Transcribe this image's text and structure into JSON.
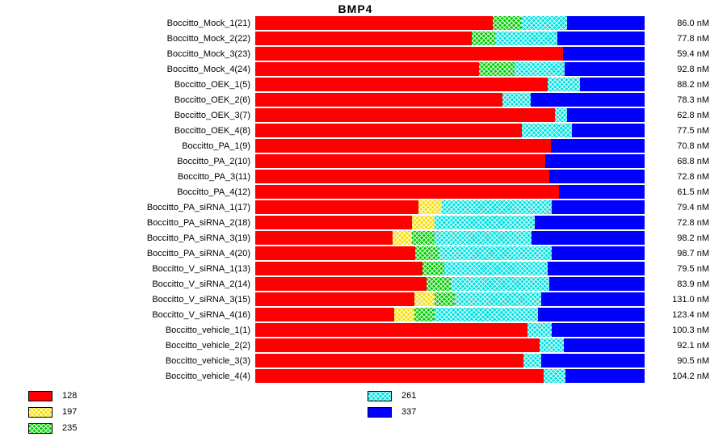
{
  "title": "BMP4",
  "colors": {
    "128": "#ff0000",
    "197": "#f5dd00",
    "235": "#00cc00",
    "261": "#00e0e0",
    "337": "#0000ff"
  },
  "legend": {
    "columns": [
      [
        "128",
        "197",
        "235"
      ],
      [
        "261",
        "337"
      ]
    ],
    "hatched": [
      "197",
      "235",
      "261"
    ]
  },
  "chart_data": {
    "type": "bar",
    "stacked": true,
    "orientation": "horizontal",
    "title": "BMP4",
    "unit": "nM",
    "series_labels": [
      "128",
      "197",
      "235",
      "261",
      "337"
    ],
    "legend_position": "bottom",
    "rows": [
      {
        "label": "Boccitto_Mock_1(21)",
        "value": "86.0 nM",
        "segments": [
          {
            "series": "128",
            "frac": 0.61
          },
          {
            "series": "235",
            "frac": 0.075
          },
          {
            "series": "261",
            "frac": 0.115
          },
          {
            "series": "337",
            "frac": 0.2
          }
        ]
      },
      {
        "label": "Boccitto_Mock_2(22)",
        "value": "77.8 nM",
        "segments": [
          {
            "series": "128",
            "frac": 0.555
          },
          {
            "series": "235",
            "frac": 0.062
          },
          {
            "series": "261",
            "frac": 0.16
          },
          {
            "series": "337",
            "frac": 0.223
          }
        ]
      },
      {
        "label": "Boccitto_Mock_3(23)",
        "value": "59.4 nM",
        "segments": [
          {
            "series": "128",
            "frac": 0.79
          },
          {
            "series": "337",
            "frac": 0.21
          }
        ]
      },
      {
        "label": "Boccitto_Mock_4(24)",
        "value": "92.8 nM",
        "segments": [
          {
            "series": "128",
            "frac": 0.575
          },
          {
            "series": "235",
            "frac": 0.09
          },
          {
            "series": "261",
            "frac": 0.13
          },
          {
            "series": "337",
            "frac": 0.205
          }
        ]
      },
      {
        "label": "Boccitto_OEK_1(5)",
        "value": "88.2 nM",
        "segments": [
          {
            "series": "128",
            "frac": 0.75
          },
          {
            "series": "261",
            "frac": 0.085
          },
          {
            "series": "337",
            "frac": 0.165
          }
        ]
      },
      {
        "label": "Boccitto_OEK_2(6)",
        "value": "78.3 nM",
        "segments": [
          {
            "series": "128",
            "frac": 0.635
          },
          {
            "series": "261",
            "frac": 0.072
          },
          {
            "series": "337",
            "frac": 0.293
          }
        ]
      },
      {
        "label": "Boccitto_OEK_3(7)",
        "value": "62.8 nM",
        "segments": [
          {
            "series": "128",
            "frac": 0.77
          },
          {
            "series": "261",
            "frac": 0.03
          },
          {
            "series": "337",
            "frac": 0.2
          }
        ]
      },
      {
        "label": "Boccitto_OEK_4(8)",
        "value": "77.5 nM",
        "segments": [
          {
            "series": "128",
            "frac": 0.685
          },
          {
            "series": "261",
            "frac": 0.128
          },
          {
            "series": "337",
            "frac": 0.187
          }
        ]
      },
      {
        "label": "Boccitto_PA_1(9)",
        "value": "70.8 nM",
        "segments": [
          {
            "series": "128",
            "frac": 0.76
          },
          {
            "series": "337",
            "frac": 0.24
          }
        ]
      },
      {
        "label": "Boccitto_PA_2(10)",
        "value": "68.8 nM",
        "segments": [
          {
            "series": "128",
            "frac": 0.745
          },
          {
            "series": "337",
            "frac": 0.255
          }
        ]
      },
      {
        "label": "Boccitto_PA_3(11)",
        "value": "72.8 nM",
        "segments": [
          {
            "series": "128",
            "frac": 0.755
          },
          {
            "series": "337",
            "frac": 0.245
          }
        ]
      },
      {
        "label": "Boccitto_PA_4(12)",
        "value": "61.5 nM",
        "segments": [
          {
            "series": "128",
            "frac": 0.78
          },
          {
            "series": "337",
            "frac": 0.22
          }
        ]
      },
      {
        "label": "Boccitto_PA_siRNA_1(17)",
        "value": "79.4 nM",
        "segments": [
          {
            "series": "128",
            "frac": 0.42
          },
          {
            "series": "197",
            "frac": 0.06
          },
          {
            "series": "261",
            "frac": 0.282
          },
          {
            "series": "337",
            "frac": 0.238
          }
        ]
      },
      {
        "label": "Boccitto_PA_siRNA_2(18)",
        "value": "72.8 nM",
        "segments": [
          {
            "series": "128",
            "frac": 0.403
          },
          {
            "series": "197",
            "frac": 0.058
          },
          {
            "series": "261",
            "frac": 0.256
          },
          {
            "series": "337",
            "frac": 0.283
          }
        ]
      },
      {
        "label": "Boccitto_PA_siRNA_3(19)",
        "value": "98.2 nM",
        "segments": [
          {
            "series": "128",
            "frac": 0.352
          },
          {
            "series": "197",
            "frac": 0.05
          },
          {
            "series": "235",
            "frac": 0.058
          },
          {
            "series": "261",
            "frac": 0.25
          },
          {
            "series": "337",
            "frac": 0.29
          }
        ]
      },
      {
        "label": "Boccitto_PA_siRNA_4(20)",
        "value": "98.7 nM",
        "segments": [
          {
            "series": "128",
            "frac": 0.41
          },
          {
            "series": "235",
            "frac": 0.062
          },
          {
            "series": "261",
            "frac": 0.29
          },
          {
            "series": "337",
            "frac": 0.238
          }
        ]
      },
      {
        "label": "Boccitto_V_siRNA_1(13)",
        "value": "79.5 nM",
        "segments": [
          {
            "series": "128",
            "frac": 0.43
          },
          {
            "series": "235",
            "frac": 0.056
          },
          {
            "series": "261",
            "frac": 0.266
          },
          {
            "series": "337",
            "frac": 0.248
          }
        ]
      },
      {
        "label": "Boccitto_V_siRNA_2(14)",
        "value": "83.9 nM",
        "segments": [
          {
            "series": "128",
            "frac": 0.44
          },
          {
            "series": "235",
            "frac": 0.062
          },
          {
            "series": "261",
            "frac": 0.253
          },
          {
            "series": "337",
            "frac": 0.245
          }
        ]
      },
      {
        "label": "Boccitto_V_siRNA_3(15)",
        "value": "131.0 nM",
        "segments": [
          {
            "series": "128",
            "frac": 0.409
          },
          {
            "series": "197",
            "frac": 0.052
          },
          {
            "series": "235",
            "frac": 0.052
          },
          {
            "series": "261",
            "frac": 0.222
          },
          {
            "series": "337",
            "frac": 0.265
          }
        ]
      },
      {
        "label": "Boccitto_V_siRNA_4(16)",
        "value": "123.4 nM",
        "segments": [
          {
            "series": "128",
            "frac": 0.357
          },
          {
            "series": "197",
            "frac": 0.052
          },
          {
            "series": "235",
            "frac": 0.052
          },
          {
            "series": "261",
            "frac": 0.266
          },
          {
            "series": "337",
            "frac": 0.273
          }
        ]
      },
      {
        "label": "Boccitto_vehicle_1(1)",
        "value": "100.3 nM",
        "segments": [
          {
            "series": "128",
            "frac": 0.7
          },
          {
            "series": "261",
            "frac": 0.062
          },
          {
            "series": "337",
            "frac": 0.238
          }
        ]
      },
      {
        "label": "Boccitto_vehicle_2(2)",
        "value": "92.1 nM",
        "segments": [
          {
            "series": "128",
            "frac": 0.73
          },
          {
            "series": "261",
            "frac": 0.062
          },
          {
            "series": "337",
            "frac": 0.208
          }
        ]
      },
      {
        "label": "Boccitto_vehicle_3(3)",
        "value": "90.5 nM",
        "segments": [
          {
            "series": "128",
            "frac": 0.689
          },
          {
            "series": "261",
            "frac": 0.046
          },
          {
            "series": "337",
            "frac": 0.265
          }
        ]
      },
      {
        "label": "Boccitto_vehicle_4(4)",
        "value": "104.2 nM",
        "segments": [
          {
            "series": "128",
            "frac": 0.74
          },
          {
            "series": "261",
            "frac": 0.056
          },
          {
            "series": "337",
            "frac": 0.204
          }
        ]
      }
    ]
  }
}
